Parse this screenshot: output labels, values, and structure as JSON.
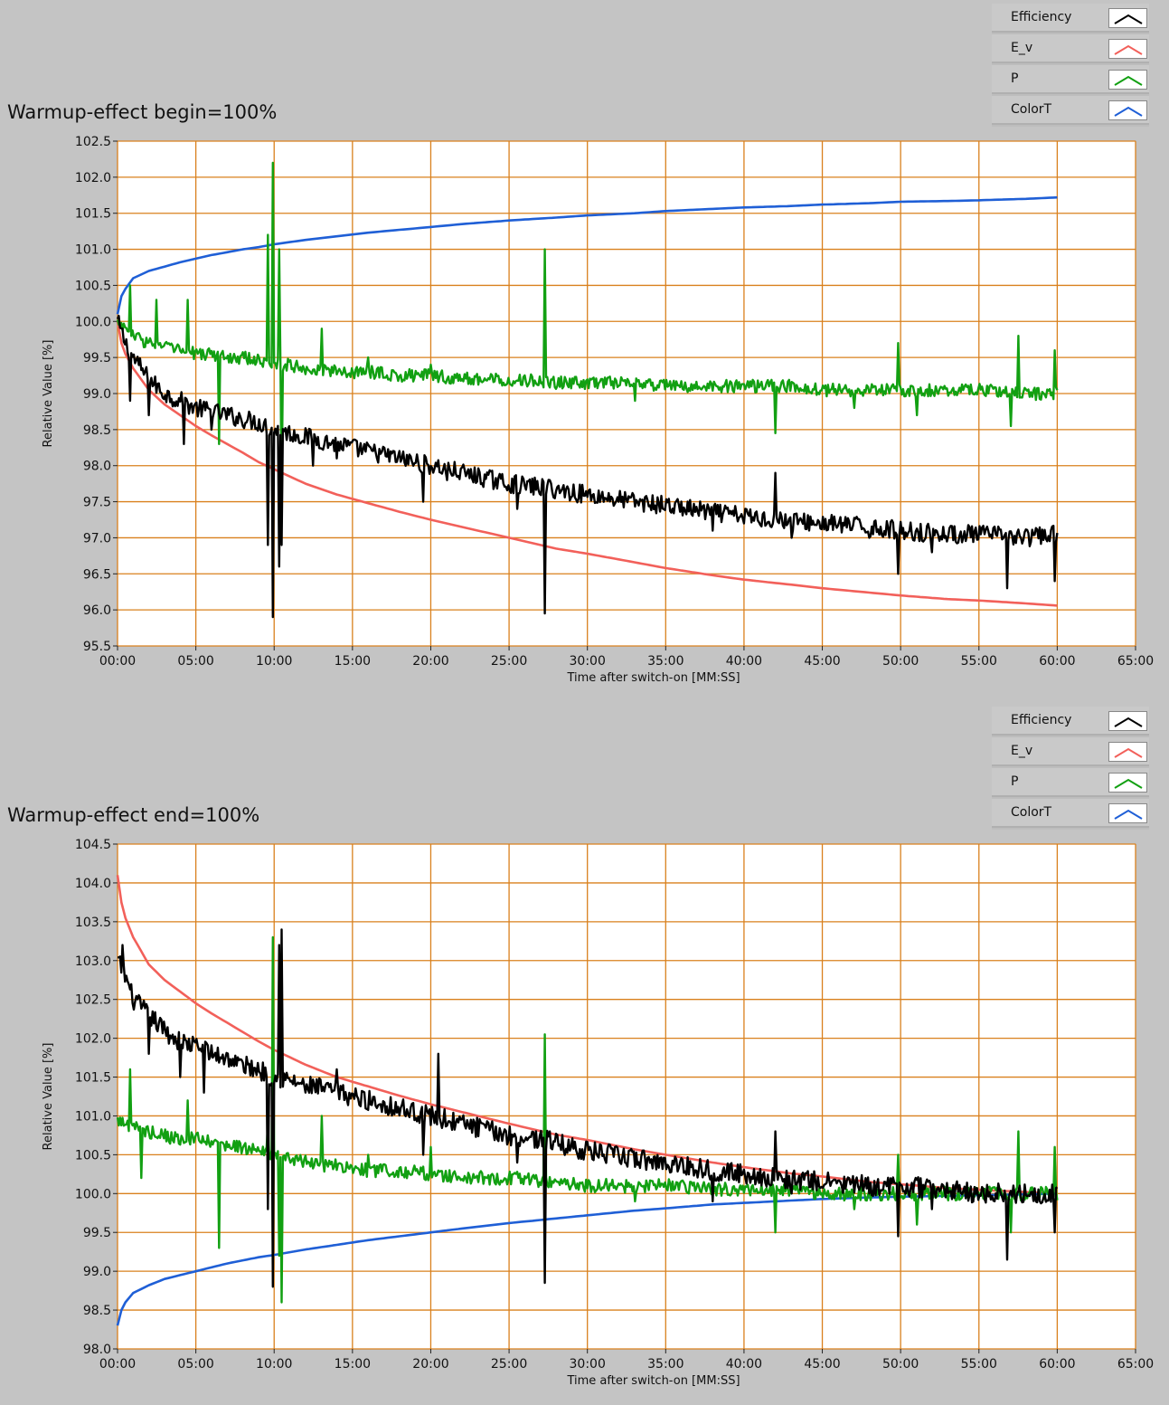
{
  "legend_items": [
    {
      "label": "Efficiency",
      "color": "#000000"
    },
    {
      "label": "E_v",
      "color": "#f2605a"
    },
    {
      "label": "P",
      "color": "#12a012"
    },
    {
      "label": "ColorT",
      "color": "#1f5fd6"
    }
  ],
  "colors": {
    "plot_background": "#ffffff",
    "grid": "#d9801d",
    "panel_background": "#c4c4c4"
  },
  "chart_data": [
    {
      "type": "line",
      "title": "Warmup-effect begin=100%",
      "xlabel": "Time after switch-on [MM:SS]",
      "ylabel": "Relative Value [%]",
      "xlim": [
        0,
        65
      ],
      "ylim": [
        95.5,
        102.5
      ],
      "x_unit": "minutes",
      "x_ticks": [
        "00:00",
        "05:00",
        "10:00",
        "15:00",
        "20:00",
        "25:00",
        "30:00",
        "35:00",
        "40:00",
        "45:00",
        "50:00",
        "55:00",
        "60:00",
        "65:00"
      ],
      "y_ticks": [
        "95.5",
        "96.0",
        "96.5",
        "97.0",
        "97.5",
        "98.0",
        "98.5",
        "99.0",
        "99.5",
        "100.0",
        "100.5",
        "101.0",
        "101.5",
        "102.0",
        "102.5"
      ],
      "grid": true,
      "legend": "top-right",
      "series": [
        {
          "name": "Efficiency",
          "color": "#000000",
          "x": [
            0,
            0.5,
            1,
            2,
            3,
            4,
            5,
            6,
            7,
            8,
            9,
            10,
            11,
            12,
            13,
            15,
            17,
            20,
            22,
            25,
            27,
            30,
            33,
            35,
            38,
            40,
            42,
            45,
            48,
            50,
            53,
            55,
            58,
            60
          ],
          "y": [
            100.0,
            99.7,
            99.5,
            99.2,
            99.0,
            98.9,
            98.8,
            98.75,
            98.7,
            98.65,
            98.6,
            98.5,
            98.45,
            98.4,
            98.35,
            98.25,
            98.15,
            98.0,
            97.9,
            97.75,
            97.7,
            97.6,
            97.5,
            97.45,
            97.35,
            97.3,
            97.25,
            97.2,
            97.15,
            97.1,
            97.05,
            97.05,
            97.0,
            97.05
          ],
          "spikes": [
            [
              0.8,
              98.9
            ],
            [
              2,
              98.7
            ],
            [
              4.2,
              98.3
            ],
            [
              6,
              98.5
            ],
            [
              9.6,
              96.9
            ],
            [
              9.9,
              95.9
            ],
            [
              10.3,
              96.6
            ],
            [
              10.5,
              96.9
            ],
            [
              12.5,
              98.0
            ],
            [
              14,
              98.1
            ],
            [
              19.5,
              97.5
            ],
            [
              21,
              97.8
            ],
            [
              25.5,
              97.4
            ],
            [
              27.3,
              95.95
            ],
            [
              27.6,
              97.8
            ],
            [
              32,
              97.5
            ],
            [
              38,
              97.1
            ],
            [
              42,
              97.9
            ],
            [
              43,
              97.0
            ],
            [
              48,
              97.0
            ],
            [
              49.8,
              96.5
            ],
            [
              52,
              96.8
            ],
            [
              56.8,
              96.3
            ],
            [
              59.8,
              96.4
            ]
          ]
        },
        {
          "name": "E_v",
          "color": "#f2605a",
          "x": [
            0,
            0.25,
            0.5,
            1,
            2,
            3,
            4,
            5,
            6,
            7,
            8,
            9,
            10,
            12,
            14,
            16,
            18,
            20,
            22,
            25,
            28,
            30,
            33,
            35,
            38,
            40,
            43,
            45,
            48,
            50,
            53,
            55,
            58,
            60
          ],
          "y": [
            100.0,
            99.7,
            99.55,
            99.35,
            99.05,
            98.85,
            98.7,
            98.55,
            98.42,
            98.3,
            98.18,
            98.05,
            97.95,
            97.75,
            97.6,
            97.48,
            97.36,
            97.25,
            97.15,
            97.0,
            96.85,
            96.78,
            96.66,
            96.58,
            96.48,
            96.42,
            96.35,
            96.3,
            96.24,
            96.2,
            96.15,
            96.13,
            96.09,
            96.06
          ]
        },
        {
          "name": "P",
          "color": "#12a012",
          "x": [
            0,
            1,
            2,
            3,
            4,
            5,
            6,
            7,
            8,
            9,
            10,
            11,
            12,
            14,
            16,
            18,
            20,
            22,
            25,
            28,
            30,
            33,
            35,
            38,
            40,
            43,
            45,
            48,
            50,
            53,
            55,
            58,
            60
          ],
          "y": [
            100.0,
            99.8,
            99.7,
            99.65,
            99.6,
            99.55,
            99.55,
            99.5,
            99.5,
            99.45,
            99.4,
            99.4,
            99.35,
            99.3,
            99.3,
            99.25,
            99.25,
            99.2,
            99.2,
            99.15,
            99.15,
            99.15,
            99.1,
            99.1,
            99.1,
            99.1,
            99.05,
            99.05,
            99.05,
            99.05,
            99.05,
            99.0,
            99.0
          ],
          "spikes": [
            [
              0.8,
              100.5
            ],
            [
              2.5,
              100.3
            ],
            [
              4.5,
              100.3
            ],
            [
              6.5,
              98.3
            ],
            [
              9.6,
              101.2
            ],
            [
              9.9,
              102.2
            ],
            [
              10.3,
              101.0
            ],
            [
              10.5,
              97.6
            ],
            [
              13,
              99.9
            ],
            [
              16,
              99.5
            ],
            [
              20,
              99.4
            ],
            [
              27.3,
              101.0
            ],
            [
              33,
              98.9
            ],
            [
              42,
              98.45
            ],
            [
              47,
              98.8
            ],
            [
              49.8,
              99.7
            ],
            [
              51,
              98.7
            ],
            [
              57,
              98.55
            ],
            [
              57.5,
              99.8
            ],
            [
              59.8,
              99.6
            ]
          ]
        },
        {
          "name": "ColorT",
          "color": "#1f5fd6",
          "x": [
            0,
            0.25,
            0.5,
            1,
            2,
            3,
            4,
            5,
            6,
            7,
            8,
            9,
            10,
            12,
            14,
            16,
            18,
            20,
            22,
            25,
            28,
            30,
            33,
            35,
            38,
            40,
            43,
            45,
            48,
            50,
            53,
            55,
            58,
            60
          ],
          "y": [
            100.1,
            100.35,
            100.45,
            100.6,
            100.7,
            100.76,
            100.82,
            100.87,
            100.92,
            100.96,
            101.0,
            101.03,
            101.07,
            101.13,
            101.18,
            101.23,
            101.27,
            101.31,
            101.35,
            101.4,
            101.44,
            101.47,
            101.5,
            101.53,
            101.56,
            101.58,
            101.6,
            101.62,
            101.64,
            101.66,
            101.67,
            101.68,
            101.7,
            101.72
          ]
        }
      ]
    },
    {
      "type": "line",
      "title": "Warmup-effect end=100%",
      "xlabel": "Time after switch-on [MM:SS]",
      "ylabel": "Relative Value [%]",
      "xlim": [
        0,
        65
      ],
      "ylim": [
        98.0,
        104.5
      ],
      "x_unit": "minutes",
      "x_ticks": [
        "00:00",
        "05:00",
        "10:00",
        "15:00",
        "20:00",
        "25:00",
        "30:00",
        "35:00",
        "40:00",
        "45:00",
        "50:00",
        "55:00",
        "60:00",
        "65:00"
      ],
      "y_ticks": [
        "98.0",
        "98.5",
        "99.0",
        "99.5",
        "100.0",
        "100.5",
        "101.0",
        "101.5",
        "102.0",
        "102.5",
        "103.0",
        "103.5",
        "104.0",
        "104.5"
      ],
      "grid": true,
      "legend": "top-right",
      "series": [
        {
          "name": "Efficiency",
          "color": "#000000",
          "x": [
            0,
            0.5,
            1,
            2,
            3,
            4,
            5,
            6,
            7,
            8,
            9,
            10,
            11,
            12,
            13,
            15,
            17,
            20,
            22,
            25,
            27,
            30,
            33,
            35,
            38,
            40,
            42,
            45,
            48,
            50,
            53,
            55,
            58,
            60
          ],
          "y": [
            103.0,
            102.8,
            102.5,
            102.3,
            102.1,
            101.95,
            101.9,
            101.8,
            101.75,
            101.65,
            101.6,
            101.5,
            101.45,
            101.4,
            101.35,
            101.25,
            101.15,
            101.0,
            100.9,
            100.75,
            100.7,
            100.55,
            100.45,
            100.4,
            100.3,
            100.25,
            100.2,
            100.15,
            100.1,
            100.1,
            100.05,
            100.0,
            100.0,
            100.0
          ],
          "spikes": [
            [
              0.3,
              103.2
            ],
            [
              2,
              101.8
            ],
            [
              4,
              101.5
            ],
            [
              5.5,
              101.3
            ],
            [
              9.6,
              99.8
            ],
            [
              9.9,
              98.8
            ],
            [
              10.3,
              103.2
            ],
            [
              10.5,
              103.4
            ],
            [
              12,
              101.3
            ],
            [
              14,
              101.6
            ],
            [
              19.5,
              100.5
            ],
            [
              20.5,
              101.8
            ],
            [
              25.5,
              100.4
            ],
            [
              27.3,
              98.85
            ],
            [
              27.6,
              100.8
            ],
            [
              32,
              100.5
            ],
            [
              38,
              99.9
            ],
            [
              42,
              100.8
            ],
            [
              43,
              100.0
            ],
            [
              48,
              100.0
            ],
            [
              49.8,
              99.45
            ],
            [
              52,
              99.8
            ],
            [
              56.8,
              99.15
            ],
            [
              59.8,
              99.5
            ]
          ]
        },
        {
          "name": "E_v",
          "color": "#f2605a",
          "x": [
            0,
            0.25,
            0.5,
            1,
            2,
            3,
            4,
            5,
            6,
            7,
            8,
            9,
            10,
            12,
            14,
            16,
            18,
            20,
            22,
            25,
            28,
            30,
            33,
            35,
            38,
            40,
            43,
            45,
            48,
            50,
            53,
            55,
            58,
            60
          ],
          "y": [
            104.1,
            103.75,
            103.55,
            103.3,
            102.95,
            102.75,
            102.6,
            102.45,
            102.32,
            102.2,
            102.08,
            101.96,
            101.85,
            101.66,
            101.5,
            101.38,
            101.26,
            101.15,
            101.05,
            100.9,
            100.76,
            100.69,
            100.57,
            100.5,
            100.4,
            100.34,
            100.26,
            100.22,
            100.15,
            100.12,
            100.07,
            100.05,
            100.02,
            100.0
          ]
        },
        {
          "name": "P",
          "color": "#12a012",
          "x": [
            0,
            1,
            2,
            3,
            4,
            5,
            6,
            7,
            8,
            9,
            10,
            11,
            12,
            14,
            16,
            18,
            20,
            22,
            25,
            28,
            30,
            33,
            35,
            38,
            40,
            43,
            45,
            48,
            50,
            53,
            55,
            58,
            60
          ],
          "y": [
            100.95,
            100.85,
            100.8,
            100.75,
            100.7,
            100.7,
            100.65,
            100.6,
            100.6,
            100.55,
            100.5,
            100.45,
            100.4,
            100.35,
            100.3,
            100.3,
            100.25,
            100.2,
            100.2,
            100.15,
            100.1,
            100.1,
            100.1,
            100.05,
            100.05,
            100.05,
            100.0,
            100.0,
            100.0,
            100.0,
            100.0,
            100.0,
            100.0
          ],
          "spikes": [
            [
              0.8,
              101.6
            ],
            [
              1.5,
              100.2
            ],
            [
              4.5,
              101.2
            ],
            [
              6.5,
              99.3
            ],
            [
              9.6,
              100.9
            ],
            [
              9.9,
              103.3
            ],
            [
              10.3,
              99.2
            ],
            [
              10.5,
              98.6
            ],
            [
              13,
              101.0
            ],
            [
              16,
              100.5
            ],
            [
              20,
              100.6
            ],
            [
              27.3,
              102.05
            ],
            [
              33,
              99.9
            ],
            [
              42,
              99.5
            ],
            [
              47,
              99.8
            ],
            [
              49.8,
              100.5
            ],
            [
              51,
              99.6
            ],
            [
              57,
              99.5
            ],
            [
              57.5,
              100.8
            ],
            [
              59.8,
              100.6
            ]
          ]
        },
        {
          "name": "ColorT",
          "color": "#1f5fd6",
          "x": [
            0,
            0.25,
            0.5,
            1,
            2,
            3,
            4,
            5,
            6,
            7,
            8,
            9,
            10,
            12,
            14,
            16,
            18,
            20,
            22,
            25,
            28,
            30,
            33,
            35,
            38,
            40,
            43,
            45,
            48,
            50,
            53,
            55,
            58,
            60
          ],
          "y": [
            98.3,
            98.5,
            98.6,
            98.72,
            98.82,
            98.9,
            98.95,
            99.0,
            99.05,
            99.1,
            99.14,
            99.18,
            99.21,
            99.28,
            99.34,
            99.4,
            99.45,
            99.5,
            99.55,
            99.62,
            99.68,
            99.72,
            99.78,
            99.81,
            99.86,
            99.88,
            99.91,
            99.93,
            99.95,
            99.96,
            99.97,
            99.98,
            99.99,
            100.0
          ]
        }
      ]
    }
  ]
}
